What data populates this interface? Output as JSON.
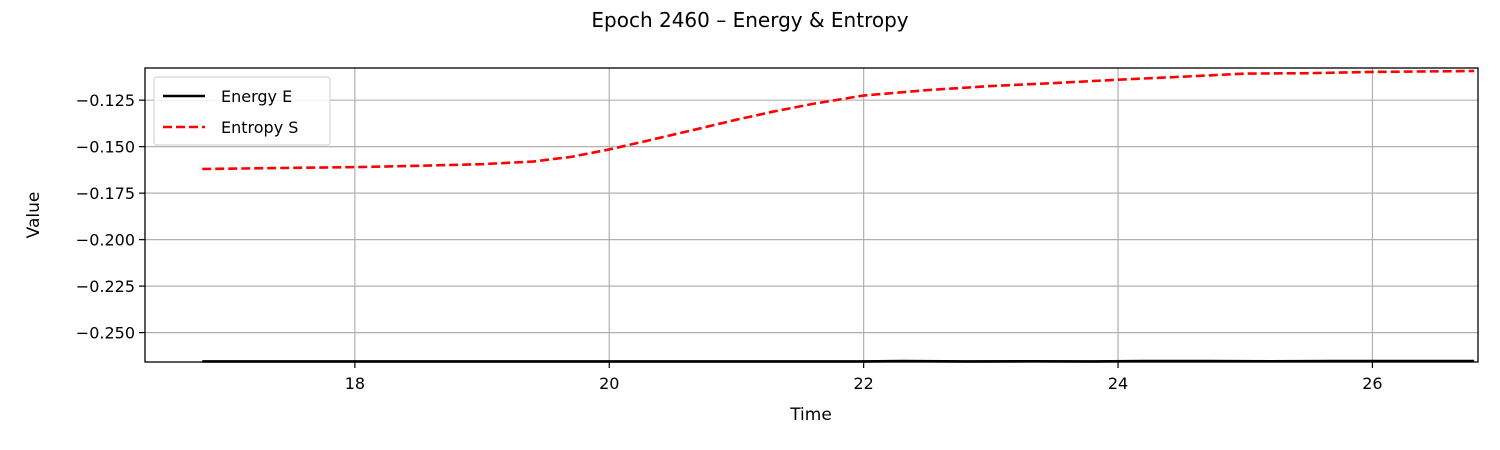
{
  "chart_data": {
    "type": "line",
    "title": "Epoch 2460 – Energy & Entropy",
    "xlabel": "Time",
    "ylabel": "Value",
    "xlim": [
      16.35,
      26.83
    ],
    "ylim": [
      -0.2658,
      -0.1077
    ],
    "xticks": [
      18,
      20,
      22,
      24,
      26
    ],
    "yticks": [
      -0.25,
      -0.225,
      -0.2,
      -0.175,
      -0.15,
      -0.125
    ],
    "grid": true,
    "legend_position": "top-left",
    "series": [
      {
        "name": "Energy E",
        "color": "#000000",
        "style": "solid",
        "x": [
          16.8,
          17.5,
          18.5,
          19.5,
          20.5,
          21.5,
          22.0,
          22.3,
          22.8,
          23.3,
          23.8,
          24.2,
          24.7,
          25.2,
          25.7,
          26.2,
          26.8
        ],
        "y": [
          -0.2655,
          -0.2655,
          -0.2655,
          -0.2655,
          -0.2655,
          -0.2655,
          -0.2655,
          -0.2653,
          -0.2655,
          -0.2654,
          -0.2655,
          -0.2653,
          -0.2653,
          -0.2654,
          -0.2653,
          -0.2653,
          -0.2653
        ]
      },
      {
        "name": "Entropy S",
        "color": "#ff0000",
        "style": "dashed",
        "x": [
          16.8,
          17.5,
          18.0,
          18.5,
          19.0,
          19.4,
          19.7,
          20.0,
          20.3,
          20.7,
          21.0,
          21.3,
          21.6,
          22.0,
          22.5,
          23.0,
          23.5,
          24.0,
          24.5,
          25.0,
          25.5,
          26.0,
          26.8
        ],
        "y": [
          -0.162,
          -0.1614,
          -0.161,
          -0.1603,
          -0.1594,
          -0.158,
          -0.1555,
          -0.1515,
          -0.1468,
          -0.1404,
          -0.1355,
          -0.131,
          -0.127,
          -0.1225,
          -0.1196,
          -0.1174,
          -0.1158,
          -0.114,
          -0.1124,
          -0.1107,
          -0.1105,
          -0.1098,
          -0.1093
        ]
      }
    ]
  }
}
